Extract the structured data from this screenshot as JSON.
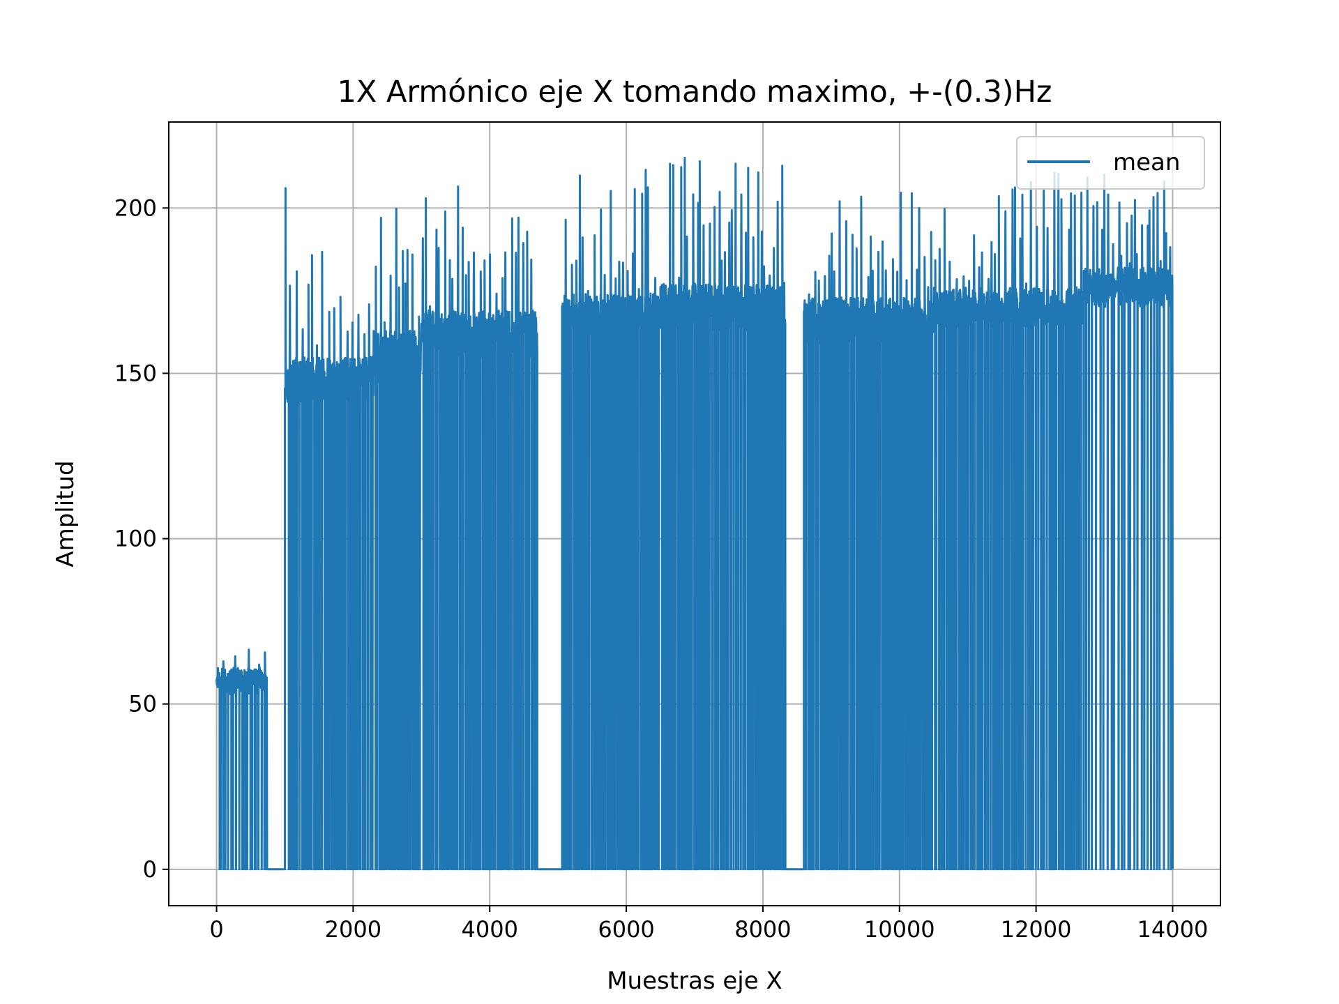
{
  "chart_data": {
    "type": "line",
    "title": "1X Armónico eje X tomando maximo, +-(0.3)Hz",
    "xlabel": "Muestras eje X",
    "ylabel": "Amplitud",
    "xlim": [
      -700,
      14700
    ],
    "ylim": [
      -11,
      226
    ],
    "x_ticks": [
      0,
      2000,
      4000,
      6000,
      8000,
      10000,
      12000,
      14000
    ],
    "x_tick_labels": [
      "0",
      "2000",
      "4000",
      "6000",
      "8000",
      "10000",
      "12000",
      "14000"
    ],
    "y_ticks": [
      0,
      50,
      100,
      150,
      200
    ],
    "y_tick_labels": [
      "0",
      "50",
      "100",
      "150",
      "200"
    ],
    "grid": true,
    "legend_position": "top-right",
    "series": [
      {
        "name": "mean",
        "color": "#1f77b4",
        "segments": [
          {
            "x_start": 0,
            "x_end": 740,
            "base": 57,
            "noise": 4,
            "drop_spacing": 28,
            "spike_spacing": 120,
            "spike_max": 67
          },
          {
            "x_start": 740,
            "x_end": 1000,
            "level": 0
          },
          {
            "x_start": 1000,
            "x_end": 1030,
            "base": 150,
            "noise": 8,
            "spike_max": 206
          },
          {
            "x_start": 1030,
            "x_end": 2300,
            "base": 148,
            "noise": 7,
            "drop_spacing": 22,
            "spike_spacing": 60,
            "spike_max": 191
          },
          {
            "x_start": 2300,
            "x_end": 3000,
            "base": 155,
            "noise": 8,
            "drop_spacing": 20,
            "spike_spacing": 55,
            "spike_max": 200
          },
          {
            "x_start": 3000,
            "x_end": 4700,
            "base": 162,
            "noise": 7,
            "drop_spacing": 20,
            "spike_spacing": 60,
            "spike_max": 208
          },
          {
            "x_start": 4700,
            "x_end": 5060,
            "level": 0
          },
          {
            "x_start": 5060,
            "x_end": 6500,
            "base": 168,
            "noise": 6,
            "drop_spacing": 20,
            "spike_spacing": 55,
            "spike_max": 212
          },
          {
            "x_start": 6500,
            "x_end": 8330,
            "base": 170,
            "noise": 7,
            "drop_spacing": 21,
            "spike_spacing": 55,
            "spike_max": 216
          },
          {
            "x_start": 8330,
            "x_end": 8600,
            "level": 0
          },
          {
            "x_start": 8600,
            "x_end": 10500,
            "base": 166,
            "noise": 7,
            "drop_spacing": 20,
            "spike_spacing": 60,
            "spike_max": 205
          },
          {
            "x_start": 10500,
            "x_end": 12700,
            "base": 170,
            "noise": 6,
            "drop_spacing": 22,
            "spike_spacing": 65,
            "spike_max": 211
          },
          {
            "x_start": 12700,
            "x_end": 14000,
            "base": 176,
            "noise": 6,
            "drop_spacing": 40,
            "spike_spacing": 55,
            "spike_max": 212
          }
        ]
      }
    ]
  }
}
